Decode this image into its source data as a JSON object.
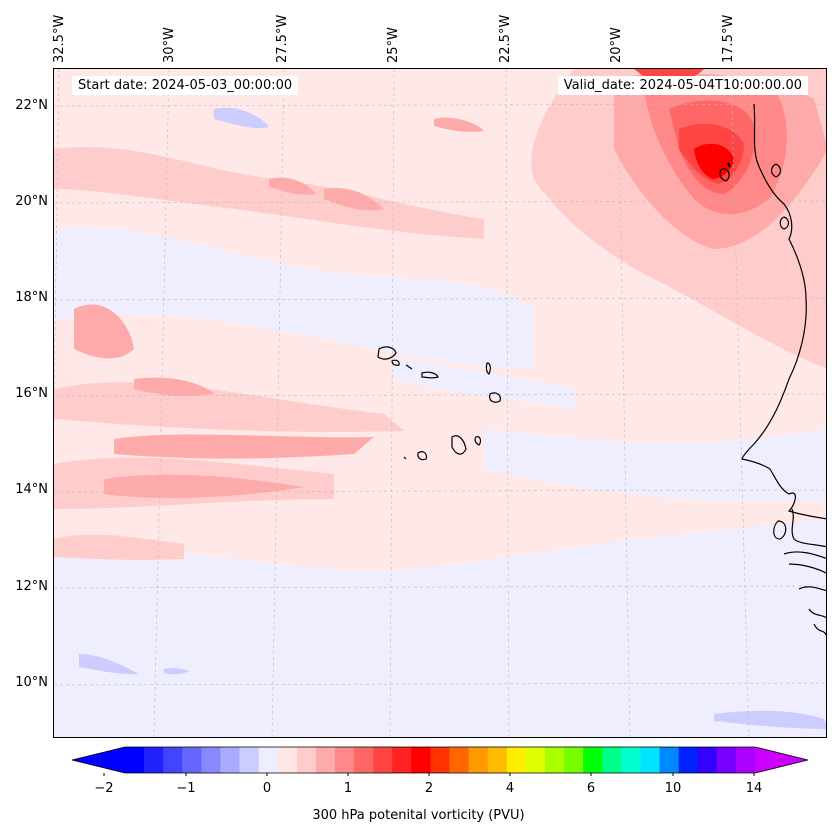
{
  "map": {
    "start_date": "Start date: 2024-05-03_00:00:00",
    "valid_date": "Valid_date: 2024-05-04T10:00:00.00",
    "longitude_labels": [
      "32.5°W",
      "30°W",
      "27.5°W",
      "25°W",
      "22.5°W",
      "20°W",
      "17.5°W"
    ],
    "latitude_labels": [
      "22°N",
      "20°N",
      "18°N",
      "16°N",
      "14°N",
      "12°N",
      "10°N"
    ],
    "field": "300 hPa potential vorticity",
    "colors": {
      "coast": "#000000",
      "gridline": "#bbbbbb",
      "background_pv": "#fee8e8"
    }
  },
  "colorbar": {
    "label": "300 hPa potenital vorticity (PVU)",
    "tick_labels": [
      "−2",
      "−1",
      "0",
      "1",
      "2",
      "4",
      "6",
      "10",
      "14"
    ],
    "colors": [
      "#0000ff",
      "#2222ff",
      "#4444ff",
      "#6666ff",
      "#8888ff",
      "#aaaaff",
      "#ccccff",
      "#eeeeff",
      "#ffe6e6",
      "#ffcccc",
      "#ffaaaa",
      "#ff8888",
      "#ff6666",
      "#ff4444",
      "#ff2222",
      "#ff0000",
      "#ff3300",
      "#ff6600",
      "#ff9900",
      "#ffbb00",
      "#ffee00",
      "#ddff00",
      "#aaff00",
      "#77ff00",
      "#00ff00",
      "#00ff88",
      "#00ffcc",
      "#00e5ff",
      "#0088ff",
      "#0022ff",
      "#3300ff",
      "#7700ff",
      "#aa00ff"
    ],
    "under_color": "#0000ff",
    "over_color": "#cc00ff"
  }
}
